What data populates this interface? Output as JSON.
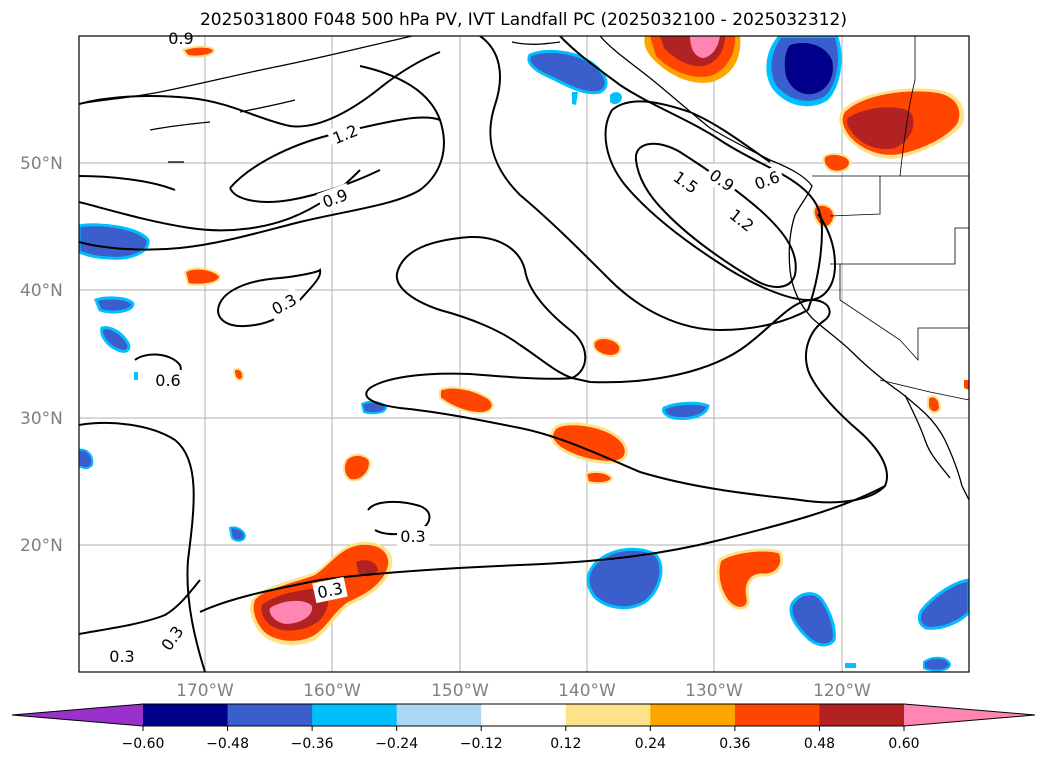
{
  "title": "2025031800 F048 500 hPa PV, IVT Landfall PC (2025032100 - 2025032312)",
  "map": {
    "lat_labels": [
      "50°N",
      "40°N",
      "30°N",
      "20°N"
    ],
    "lon_labels": [
      "170°W",
      "160°W",
      "150°W",
      "140°W",
      "130°W",
      "120°W"
    ],
    "lon_range": [
      -179,
      -109
    ],
    "lat_range": [
      10,
      60
    ]
  },
  "contours": {
    "labels": [
      {
        "text": "1.2"
      },
      {
        "text": "0.9"
      },
      {
        "text": "0.3"
      },
      {
        "text": "0.6"
      },
      {
        "text": "1.5"
      },
      {
        "text": "0.9"
      },
      {
        "text": "1.2"
      },
      {
        "text": "0.6"
      },
      {
        "text": "0.3"
      },
      {
        "text": "0.3"
      },
      {
        "text": "0.3"
      },
      {
        "text": "0.3"
      },
      {
        "text": "0.9"
      }
    ]
  },
  "colorbar": {
    "levels": [
      "−0.60",
      "−0.48",
      "−0.36",
      "−0.24",
      "−0.12",
      "0.12",
      "0.24",
      "0.36",
      "0.48",
      "0.60"
    ],
    "colors": [
      "#9932cc",
      "#00008b",
      "#3a5fcd",
      "#00bfff",
      "#add8f5",
      "#ffffff",
      "#fce38a",
      "#ffa500",
      "#ff4500",
      "#b22222",
      "#ff85b3"
    ]
  },
  "shading_colors": {
    "blue_inner": "#00008b",
    "blue_mid": "#3a5fcd",
    "blue_edge": "#00bfff",
    "blue_light": "#add8f5",
    "yellow": "#fce38a",
    "orange": "#ffa500",
    "red": "#ff4500",
    "dark_red": "#b22222",
    "pink": "#ff85b3"
  }
}
